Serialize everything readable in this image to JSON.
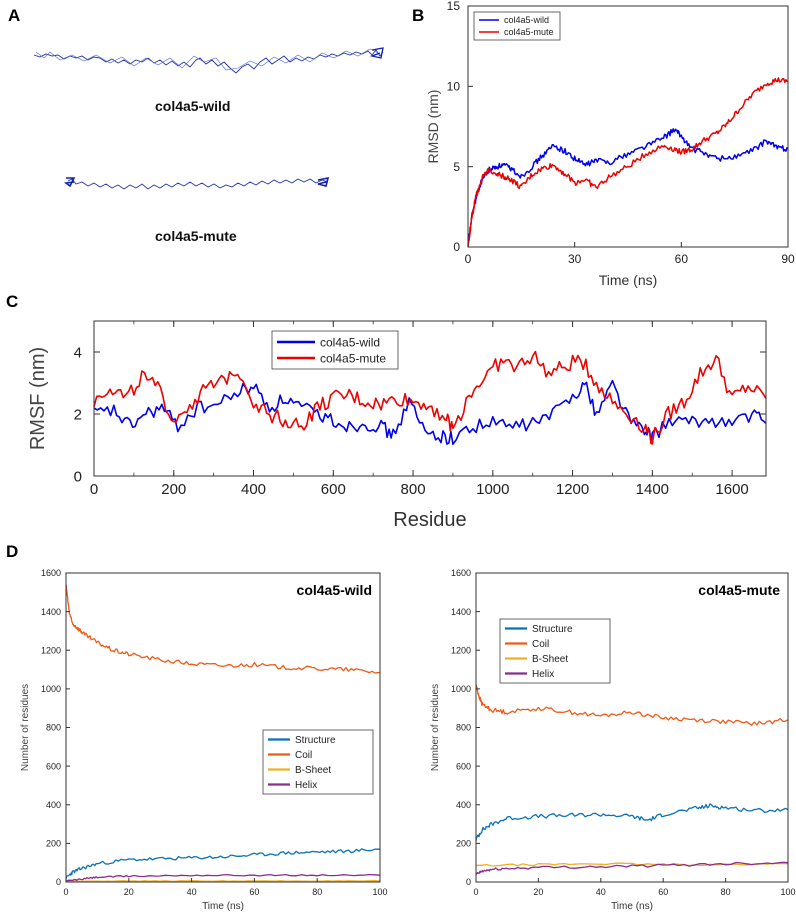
{
  "panels": {
    "A": "A",
    "B": "B",
    "C": "C",
    "D": "D"
  },
  "panel_a": {
    "labels": [
      "col4a5-wild",
      "col4a5-mute"
    ],
    "colors": {
      "molecule": "#2233aa"
    }
  },
  "colors": {
    "wild": "#0000ee",
    "mute": "#ee0000",
    "structure": "#0a72b8",
    "coil": "#f05a16",
    "bsheet": "#f0b020",
    "helix": "#8b2c8f"
  },
  "chart_data": [
    {
      "id": "B",
      "type": "line",
      "title": "",
      "xlabel": "Time (ns)",
      "ylabel": "RMSD (nm)",
      "xlim": [
        0,
        90
      ],
      "ylim": [
        0,
        15
      ],
      "xticks": [
        0,
        30,
        60,
        90
      ],
      "yticks": [
        0,
        5,
        10,
        15
      ],
      "legend": "top-left",
      "series": [
        {
          "name": "col4a5-wild",
          "color": "#0000ee",
          "x": [
            0,
            1,
            2,
            3,
            4,
            6,
            8,
            10,
            12,
            15,
            18,
            21,
            24,
            27,
            30,
            33,
            36,
            40,
            45,
            50,
            55,
            58,
            60,
            63,
            66,
            70,
            75,
            80,
            84,
            87,
            90
          ],
          "y": [
            0,
            1.8,
            2.8,
            3.6,
            4.2,
            4.8,
            5.0,
            5.1,
            4.9,
            4.4,
            5.0,
            5.7,
            6.3,
            6.0,
            5.5,
            5.1,
            5.4,
            5.3,
            5.8,
            6.3,
            6.8,
            7.3,
            6.9,
            6.1,
            5.9,
            5.5,
            5.6,
            6.0,
            6.6,
            6.2,
            6.1
          ]
        },
        {
          "name": "col4a5-mute",
          "color": "#ee0000",
          "x": [
            0,
            1,
            2,
            3,
            4,
            6,
            8,
            10,
            12,
            15,
            18,
            21,
            24,
            27,
            30,
            33,
            36,
            40,
            45,
            50,
            55,
            58,
            60,
            63,
            66,
            70,
            73,
            76,
            80,
            84,
            87,
            90
          ],
          "y": [
            0,
            1.7,
            2.9,
            3.7,
            4.3,
            4.8,
            4.6,
            4.4,
            4.2,
            3.7,
            4.5,
            4.9,
            5.1,
            4.6,
            4.0,
            4.2,
            3.7,
            4.4,
            5.0,
            5.8,
            6.3,
            6.1,
            5.9,
            6.1,
            6.6,
            7.1,
            7.7,
            8.5,
            9.5,
            10.2,
            10.4,
            10.3
          ]
        }
      ]
    },
    {
      "id": "C",
      "type": "line",
      "title": "",
      "xlabel": "Residue",
      "ylabel": "RMSF (nm)",
      "xlim": [
        0,
        1685
      ],
      "ylim": [
        0,
        5
      ],
      "xticks": [
        0,
        200,
        400,
        600,
        800,
        1000,
        1200,
        1400,
        1600
      ],
      "yticks": [
        0,
        2,
        4
      ],
      "legend": "top-center",
      "series": [
        {
          "name": "col4a5-wild",
          "color": "#0000ee",
          "x": [
            0,
            50,
            90,
            130,
            170,
            210,
            260,
            310,
            360,
            400,
            440,
            480,
            520,
            560,
            600,
            640,
            680,
            720,
            750,
            790,
            830,
            870,
            900,
            950,
            1000,
            1050,
            1100,
            1150,
            1200,
            1230,
            1260,
            1300,
            1340,
            1380,
            1400,
            1450,
            1500,
            1550,
            1600,
            1650,
            1685
          ],
          "y": [
            2.0,
            2.1,
            1.6,
            2.0,
            2.2,
            1.6,
            2.2,
            2.3,
            2.7,
            2.9,
            2.2,
            2.5,
            2.2,
            2.0,
            1.8,
            1.6,
            1.7,
            1.6,
            1.3,
            2.4,
            1.4,
            1.3,
            1.2,
            1.6,
            1.7,
            1.6,
            1.7,
            2.0,
            2.6,
            3.0,
            2.0,
            3.0,
            1.9,
            1.4,
            1.3,
            1.8,
            1.7,
            1.8,
            1.7,
            2.0,
            1.7
          ]
        },
        {
          "name": "col4a5-mute",
          "color": "#ee0000",
          "x": [
            0,
            40,
            80,
            120,
            160,
            200,
            240,
            280,
            320,
            360,
            400,
            440,
            480,
            520,
            560,
            600,
            640,
            680,
            720,
            760,
            800,
            840,
            880,
            900,
            940,
            980,
            1020,
            1060,
            1100,
            1140,
            1180,
            1220,
            1260,
            1300,
            1340,
            1380,
            1400,
            1440,
            1480,
            1520,
            1560,
            1600,
            1640,
            1685
          ],
          "y": [
            2.4,
            2.9,
            2.5,
            3.2,
            2.8,
            1.8,
            2.3,
            2.8,
            3.0,
            3.5,
            2.4,
            2.0,
            1.8,
            1.6,
            2.2,
            2.5,
            2.6,
            2.4,
            2.3,
            2.5,
            2.4,
            2.3,
            1.9,
            1.5,
            2.6,
            3.2,
            3.7,
            3.5,
            3.9,
            3.3,
            3.5,
            3.8,
            3.0,
            2.4,
            2.0,
            1.6,
            1.2,
            2.0,
            2.4,
            3.3,
            3.8,
            2.5,
            2.9,
            2.5
          ]
        }
      ]
    },
    {
      "id": "D-left",
      "type": "line",
      "title": "col4a5-wild",
      "xlabel": "Time (ns)",
      "ylabel": "Number of residues",
      "xlim": [
        0,
        100
      ],
      "ylim": [
        0,
        1600
      ],
      "xticks": [
        0,
        20,
        40,
        60,
        80,
        100
      ],
      "yticks": [
        0,
        200,
        400,
        600,
        800,
        1000,
        1200,
        1400,
        1600
      ],
      "legend": "center-right",
      "series": [
        {
          "name": "Structure",
          "color": "#0a72b8",
          "x": [
            0,
            2,
            5,
            10,
            20,
            30,
            40,
            50,
            60,
            70,
            80,
            90,
            100
          ],
          "y": [
            20,
            50,
            70,
            95,
            115,
            120,
            125,
            130,
            140,
            150,
            155,
            160,
            170
          ]
        },
        {
          "name": "Coil",
          "color": "#f05a16",
          "x": [
            0,
            1,
            2,
            4,
            6,
            10,
            15,
            20,
            30,
            40,
            50,
            60,
            70,
            80,
            90,
            100
          ],
          "y": [
            1540,
            1400,
            1340,
            1310,
            1280,
            1240,
            1200,
            1180,
            1150,
            1130,
            1120,
            1125,
            1110,
            1105,
            1100,
            1085
          ]
        },
        {
          "name": "B-Sheet",
          "color": "#f0b020",
          "x": [
            0,
            20,
            40,
            60,
            80,
            100
          ],
          "y": [
            5,
            5,
            5,
            5,
            5,
            5
          ]
        },
        {
          "name": "Helix",
          "color": "#8b2c8f",
          "x": [
            0,
            5,
            10,
            20,
            40,
            60,
            80,
            100
          ],
          "y": [
            5,
            15,
            25,
            30,
            35,
            35,
            35,
            35
          ]
        }
      ]
    },
    {
      "id": "D-right",
      "type": "line",
      "title": "col4a5-mute",
      "xlabel": "Time (ns)",
      "ylabel": "Number of residues",
      "xlim": [
        0,
        100
      ],
      "ylim": [
        0,
        1600
      ],
      "xticks": [
        0,
        20,
        40,
        60,
        80,
        100
      ],
      "yticks": [
        0,
        200,
        400,
        600,
        800,
        1000,
        1200,
        1400,
        1600
      ],
      "legend": "top-left",
      "series": [
        {
          "name": "Structure",
          "color": "#0a72b8",
          "x": [
            0,
            2,
            5,
            10,
            20,
            30,
            40,
            50,
            55,
            60,
            70,
            75,
            80,
            90,
            100
          ],
          "y": [
            220,
            270,
            300,
            330,
            340,
            345,
            350,
            340,
            320,
            350,
            380,
            395,
            385,
            370,
            375
          ]
        },
        {
          "name": "Coil",
          "color": "#f05a16",
          "x": [
            0,
            1,
            2,
            5,
            10,
            20,
            30,
            40,
            50,
            60,
            70,
            80,
            90,
            100
          ],
          "y": [
            1020,
            960,
            920,
            890,
            880,
            900,
            880,
            860,
            880,
            850,
            840,
            830,
            820,
            840
          ]
        },
        {
          "name": "B-Sheet",
          "color": "#f0b020",
          "x": [
            0,
            20,
            40,
            60,
            80,
            100
          ],
          "y": [
            85,
            90,
            95,
            90,
            90,
            95
          ]
        },
        {
          "name": "Helix",
          "color": "#8b2c8f",
          "x": [
            0,
            2,
            5,
            10,
            20,
            40,
            60,
            80,
            100
          ],
          "y": [
            40,
            55,
            65,
            70,
            75,
            80,
            85,
            95,
            100
          ]
        }
      ]
    }
  ]
}
